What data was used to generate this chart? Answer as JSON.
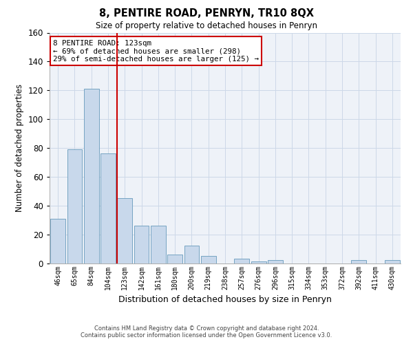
{
  "title": "8, PENTIRE ROAD, PENRYN, TR10 8QX",
  "subtitle": "Size of property relative to detached houses in Penryn",
  "xlabel": "Distribution of detached houses by size in Penryn",
  "ylabel": "Number of detached properties",
  "categories": [
    "46sqm",
    "65sqm",
    "84sqm",
    "104sqm",
    "123sqm",
    "142sqm",
    "161sqm",
    "180sqm",
    "200sqm",
    "219sqm",
    "238sqm",
    "257sqm",
    "276sqm",
    "296sqm",
    "315sqm",
    "334sqm",
    "353sqm",
    "372sqm",
    "392sqm",
    "411sqm",
    "430sqm"
  ],
  "values": [
    31,
    79,
    121,
    76,
    45,
    26,
    26,
    6,
    12,
    5,
    0,
    3,
    1,
    2,
    0,
    0,
    0,
    0,
    2,
    0,
    2
  ],
  "bar_color": "#c8d8eb",
  "bar_edge_color": "#6699bb",
  "highlight_index": 4,
  "highlight_color": "#cc0000",
  "ylim": [
    0,
    160
  ],
  "yticks": [
    0,
    20,
    40,
    60,
    80,
    100,
    120,
    140,
    160
  ],
  "annotation_text": "8 PENTIRE ROAD: 123sqm\n← 69% of detached houses are smaller (298)\n29% of semi-detached houses are larger (125) →",
  "footer_line1": "Contains HM Land Registry data © Crown copyright and database right 2024.",
  "footer_line2": "Contains public sector information licensed under the Open Government Licence v3.0.",
  "grid_color": "#ccd8e8",
  "bg_color": "#eef2f8"
}
